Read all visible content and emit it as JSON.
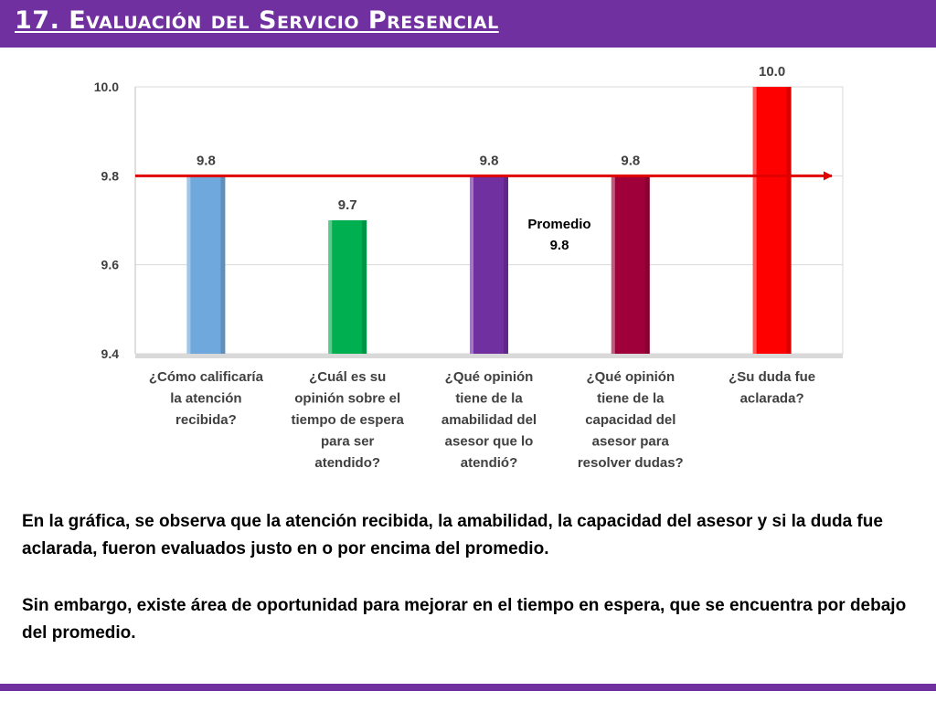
{
  "slide": {
    "title": "17. Evaluación del Servicio Presencial",
    "accent_color": "#7030A0"
  },
  "chart_data": {
    "type": "bar",
    "categories": [
      [
        "¿Cómo calificaría",
        "la atención",
        "recibida?"
      ],
      [
        "¿Cuál es su",
        "opinión sobre el",
        "tiempo de espera",
        "para ser",
        "atendido?"
      ],
      [
        "¿Qué opinión",
        "tiene de la",
        "amabilidad del",
        "asesor que lo",
        "atendió?"
      ],
      [
        "¿Qué opinión",
        "tiene de la",
        "capacidad del",
        "asesor para",
        "resolver dudas?"
      ],
      [
        "¿Su duda fue",
        "aclarada?"
      ]
    ],
    "values": [
      9.8,
      9.7,
      9.8,
      9.8,
      10.0
    ],
    "value_labels": [
      "9.8",
      "9.7",
      "9.8",
      "9.8",
      "10.0"
    ],
    "bar_colors": [
      "#6FA8DC",
      "#00B050",
      "#7030A0",
      "#A0003A",
      "#FF0000"
    ],
    "ylim": [
      9.4,
      10.0
    ],
    "yticks": [
      9.4,
      9.6,
      9.8,
      10.0
    ],
    "ytick_labels": [
      "9.4",
      "9.6",
      "9.8",
      "10.0"
    ],
    "grid": true,
    "average": {
      "value": 9.8,
      "label": "Promedio",
      "value_label": "9.8",
      "color": "#E00000"
    }
  },
  "text": {
    "paragraph1": "En la gráfica, se observa que la atención recibida, la amabilidad, la capacidad del asesor y si la duda fue aclarada, fueron evaluados justo en o por encima del promedio.",
    "paragraph2": "Sin embargo, existe área de oportunidad para mejorar en el tiempo en espera, que se encuentra por debajo del promedio."
  }
}
